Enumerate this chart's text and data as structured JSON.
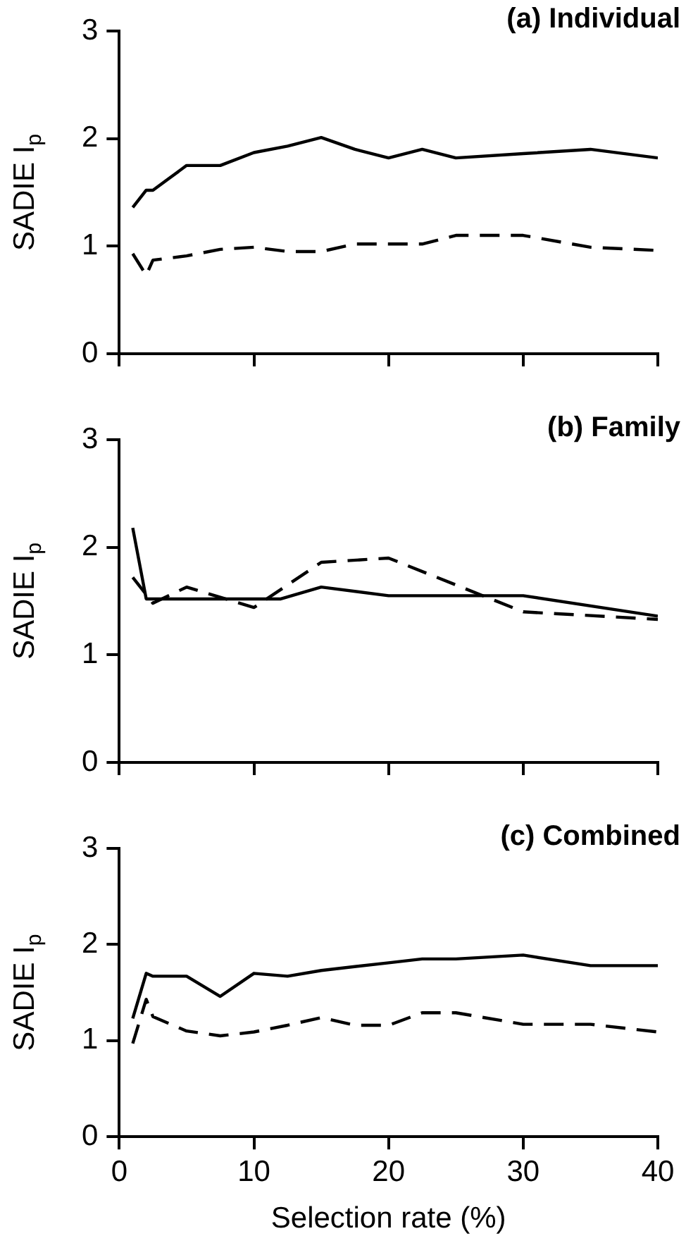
{
  "chart_data": [
    {
      "type": "line",
      "title": "(a) Individual",
      "ylabel": "SADIE I$_{p}$",
      "xlim": [
        0,
        40
      ],
      "xticks": [
        0,
        10,
        20,
        30,
        40
      ],
      "ylim": [
        0,
        3
      ],
      "yticks": [
        0,
        1,
        2,
        3
      ],
      "tick_labels": "y",
      "grid": false,
      "legend": false,
      "marker": "none",
      "series": [
        {
          "color": "#000000",
          "line_style": "solid",
          "x": [
            1,
            2,
            2.5,
            5,
            7.5,
            10,
            12.5,
            15,
            17.5,
            20,
            22.5,
            25,
            30,
            35,
            40
          ],
          "values": [
            1.36,
            1.52,
            1.52,
            1.75,
            1.75,
            1.87,
            1.93,
            2.01,
            1.9,
            1.82,
            1.9,
            1.82,
            1.86,
            1.9,
            1.82
          ]
        },
        {
          "color": "#000000",
          "line_style": "dashed",
          "x": [
            1,
            2,
            2.5,
            5,
            7.5,
            10,
            12.5,
            15,
            17.5,
            20,
            22.5,
            25,
            30,
            35,
            40
          ],
          "values": [
            0.93,
            0.73,
            0.87,
            0.91,
            0.97,
            0.99,
            0.95,
            0.95,
            1.02,
            1.02,
            1.02,
            1.1,
            1.1,
            0.99,
            0.96
          ]
        }
      ]
    },
    {
      "type": "line",
      "title": "(b) Family",
      "ylabel": "SADIE I$_{p}$",
      "xlim": [
        0,
        40
      ],
      "xticks": [
        0,
        10,
        20,
        30,
        40
      ],
      "ylim": [
        0,
        3
      ],
      "yticks": [
        0,
        1,
        2,
        3
      ],
      "tick_labels": "y",
      "grid": false,
      "legend": false,
      "marker": "none",
      "series": [
        {
          "color": "#000000",
          "line_style": "solid",
          "x": [
            1,
            2,
            5,
            10,
            12,
            15,
            20,
            25,
            30,
            40
          ],
          "values": [
            2.18,
            1.52,
            1.52,
            1.52,
            1.52,
            1.63,
            1.55,
            1.55,
            1.55,
            1.36
          ]
        },
        {
          "color": "#000000",
          "line_style": "dashed",
          "x": [
            1,
            2.5,
            5,
            10,
            15,
            20,
            25,
            30,
            40
          ],
          "values": [
            1.72,
            1.48,
            1.63,
            1.44,
            1.86,
            1.9,
            1.65,
            1.4,
            1.33
          ]
        }
      ]
    },
    {
      "type": "line",
      "title": "(c) Combined",
      "xlabel": "Selection rate (%)",
      "ylabel": "SADIE I$_{p}$",
      "xlim": [
        0,
        40
      ],
      "xticks": [
        0,
        10,
        20,
        30,
        40
      ],
      "ylim": [
        0,
        3
      ],
      "yticks": [
        0,
        1,
        2,
        3
      ],
      "grid": false,
      "legend": false,
      "marker": "none",
      "series": [
        {
          "color": "#000000",
          "line_style": "solid",
          "x": [
            1,
            2,
            2.5,
            5,
            7.5,
            10,
            12.5,
            15,
            20,
            22.5,
            25,
            30,
            35,
            40
          ],
          "values": [
            1.23,
            1.7,
            1.67,
            1.67,
            1.46,
            1.7,
            1.67,
            1.73,
            1.81,
            1.85,
            1.85,
            1.89,
            1.78,
            1.78
          ]
        },
        {
          "color": "#000000",
          "line_style": "dashed",
          "x": [
            1,
            2,
            2.5,
            5,
            7.5,
            10,
            12.5,
            15,
            17.5,
            20,
            22.5,
            25,
            30,
            35,
            40
          ],
          "values": [
            0.97,
            1.43,
            1.25,
            1.1,
            1.05,
            1.09,
            1.16,
            1.24,
            1.16,
            1.16,
            1.29,
            1.29,
            1.17,
            1.17,
            1.09
          ]
        }
      ]
    }
  ]
}
